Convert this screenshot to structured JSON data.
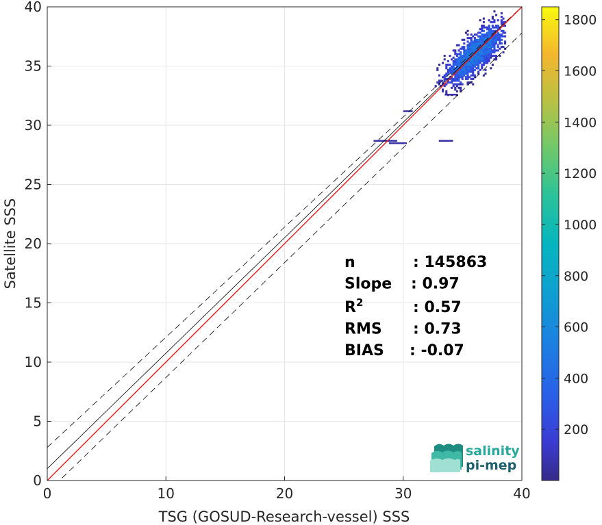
{
  "chart_data": {
    "type": "heatmap",
    "xlabel": "TSG (GOSUD-Research-vessel) SSS",
    "ylabel": "Satellite SSS",
    "xlim": [
      0,
      40
    ],
    "ylim": [
      0,
      40
    ],
    "x_ticks": [
      "0",
      "10",
      "20",
      "30",
      "40"
    ],
    "y_ticks": [
      "0",
      "5",
      "10",
      "15",
      "20",
      "25",
      "30",
      "35",
      "40"
    ],
    "grid": true,
    "colorbar": {
      "colormap": "parula",
      "range": [
        0,
        1850
      ],
      "ticks": [
        200,
        400,
        600,
        800,
        1000,
        1200,
        1400,
        1600,
        1800
      ],
      "tick_labels": [
        "200",
        "400",
        "600",
        "800",
        "1000",
        "1200",
        "1400",
        "1600",
        "1800"
      ]
    },
    "reference_lines": [
      {
        "kind": "identity",
        "intercept": 0,
        "slope": 1,
        "color": "#000000",
        "style": "solid"
      },
      {
        "kind": "upper-bound",
        "intercept": 2.8,
        "slope": 0.93,
        "color": "#000000",
        "style": "dashed"
      },
      {
        "kind": "lower-bound",
        "intercept": -1.0,
        "slope": 0.97,
        "color": "#000000",
        "style": "dashed"
      },
      {
        "kind": "fit",
        "intercept": 1.0,
        "slope": 0.975,
        "color": "#000000",
        "style": "solid"
      },
      {
        "kind": "regression",
        "intercept": 0,
        "slope": 1,
        "color": "#e8191b",
        "style": "solid"
      }
    ],
    "density_cluster": {
      "x_center": 36,
      "y_center": 36,
      "x_range": [
        32.5,
        38.5
      ],
      "y_range": [
        32.5,
        39.8
      ]
    },
    "outlier_segments": [
      {
        "x": [
          27.5,
          29.5
        ],
        "y": 28.7
      },
      {
        "x": [
          28.8,
          30.3
        ],
        "y": 28.5
      },
      {
        "x": [
          33.0,
          34.2
        ],
        "y": 28.7
      },
      {
        "x": [
          30.0,
          30.8
        ],
        "y": 31.2
      },
      {
        "x": [
          33.5,
          34.5
        ],
        "y": 32.6
      }
    ],
    "stats": [
      {
        "label": "n",
        "value": ": 145863"
      },
      {
        "label": "Slope",
        "value": ": 0.97"
      },
      {
        "label": "R",
        "sup": "2",
        "value": ": 0.57"
      },
      {
        "label": "RMS",
        "value": ": 0.73"
      },
      {
        "label": "BIAS",
        "value": ": -0.07"
      }
    ]
  },
  "logo": {
    "line1": "salinity",
    "line2": "pi-mep"
  }
}
